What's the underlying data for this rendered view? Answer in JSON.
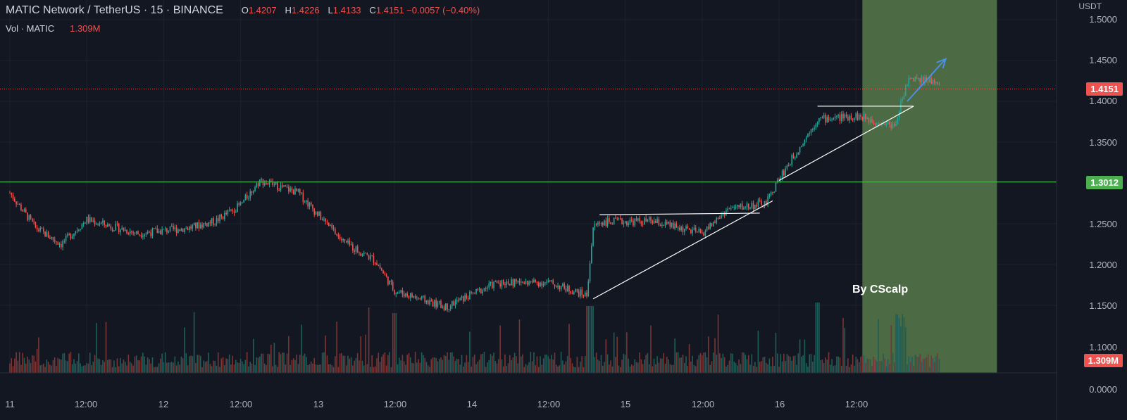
{
  "header": {
    "symbol": "MATIC Network / TetherUS · 15 · BINANCE",
    "ohlc": [
      {
        "k": "O",
        "v": "1.4207"
      },
      {
        "k": "H",
        "v": "1.4226"
      },
      {
        "k": "L",
        "v": "1.4133"
      },
      {
        "k": "C",
        "v": "1.4151 −0.0057 (−0.40%)"
      }
    ],
    "vol_label": "Vol · MATIC",
    "vol_value": "1.309M"
  },
  "price_axis": {
    "unit": "USDT",
    "ticks": [
      "1.5000",
      "1.4500",
      "1.4000",
      "1.3500",
      "1.2500",
      "1.2000",
      "1.1500",
      "1.1000",
      "0.0000"
    ]
  },
  "time_axis": {
    "ticks": [
      "11",
      "12:00",
      "12",
      "12:00",
      "13",
      "12:00",
      "14",
      "12:00",
      "15",
      "12:00",
      "16",
      "12:00"
    ]
  },
  "badges": {
    "last_price": "1.4151",
    "level": "1.3012",
    "volume": "1.309M"
  },
  "watermark": "By CScalp",
  "colors": {
    "background": "#131722",
    "up": "#26a69a",
    "down": "#ef5350",
    "level_line": "#4caf50",
    "highlight_zone": "#4c6a44",
    "arrow": "#4a90e2"
  },
  "chart_data": {
    "type": "candlestick",
    "interval": "15m",
    "ylim": [
      1.12,
      1.51
    ],
    "horizontal_level": 1.3012,
    "last_price": 1.4151,
    "waypoints": [
      {
        "x": "11 00:00",
        "y": 1.288
      },
      {
        "x": "11 04:00",
        "y": 1.245
      },
      {
        "x": "11 08:00",
        "y": 1.225
      },
      {
        "x": "11 12:00",
        "y": 1.255
      },
      {
        "x": "11 20:00",
        "y": 1.238
      },
      {
        "x": "12 04:00",
        "y": 1.245
      },
      {
        "x": "12 08:00",
        "y": 1.253
      },
      {
        "x": "12 12:00",
        "y": 1.273
      },
      {
        "x": "12 15:00",
        "y": 1.303
      },
      {
        "x": "12 21:00",
        "y": 1.288
      },
      {
        "x": "13 00:00",
        "y": 1.262
      },
      {
        "x": "13 04:00",
        "y": 1.228
      },
      {
        "x": "13 09:00",
        "y": 1.205
      },
      {
        "x": "13 12:00",
        "y": 1.168
      },
      {
        "x": "13 20:00",
        "y": 1.148
      },
      {
        "x": "14 04:00",
        "y": 1.178
      },
      {
        "x": "14 12:00",
        "y": 1.178
      },
      {
        "x": "14 18:00",
        "y": 1.162
      },
      {
        "x": "14 19:00",
        "y": 1.245
      },
      {
        "x": "14 20:00",
        "y": 1.252
      },
      {
        "x": "15 04:00",
        "y": 1.253
      },
      {
        "x": "15 12:00",
        "y": 1.238
      },
      {
        "x": "15 16:00",
        "y": 1.268
      },
      {
        "x": "15 22:00",
        "y": 1.275
      },
      {
        "x": "16 00:00",
        "y": 1.305
      },
      {
        "x": "16 06:00",
        "y": 1.378
      },
      {
        "x": "16 12:00",
        "y": 1.382
      },
      {
        "x": "16 18:00",
        "y": 1.37
      },
      {
        "x": "16 20:00",
        "y": 1.425
      }
    ],
    "annotations": [
      {
        "type": "trendline",
        "from": {
          "x": "14 19:00",
          "y": 1.158
        },
        "to": {
          "x": "15 23:00",
          "y": 1.278
        }
      },
      {
        "type": "trendline",
        "from": {
          "x": "14 20:00",
          "y": 1.261
        },
        "to": {
          "x": "15 21:00",
          "y": 1.263
        }
      },
      {
        "type": "trendline",
        "from": {
          "x": "16 00:00",
          "y": 1.303
        },
        "to": {
          "x": "16 21:00",
          "y": 1.394
        }
      },
      {
        "type": "trendline",
        "from": {
          "x": "16 06:00",
          "y": 1.394
        },
        "to": {
          "x": "16 21:00",
          "y": 1.394
        }
      },
      {
        "type": "arrow",
        "from": {
          "x": "16 20:00",
          "y": 1.4
        },
        "to": {
          "x": "17 02:00",
          "y": 1.452
        }
      },
      {
        "type": "highlight",
        "from": "16 13:00",
        "to": "17 10:00"
      }
    ]
  }
}
